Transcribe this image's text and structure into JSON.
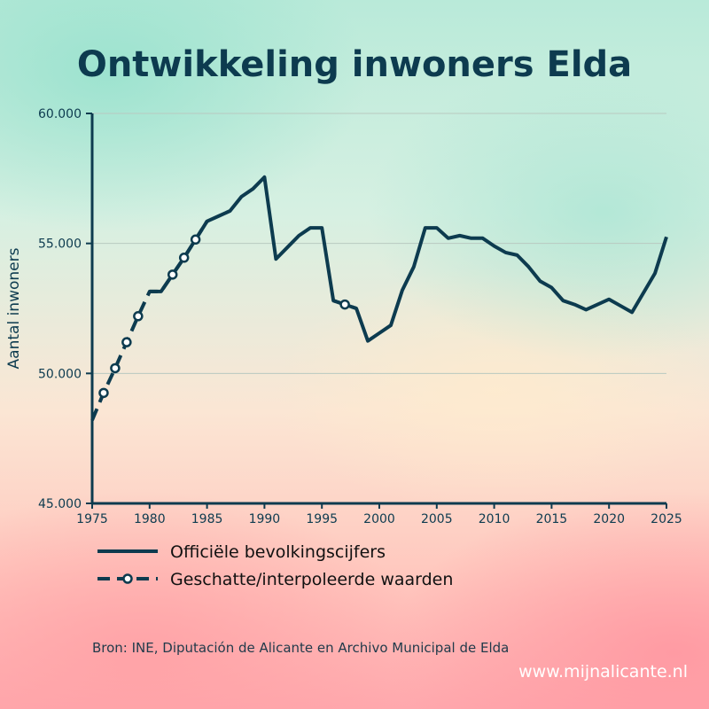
{
  "title": "Ontwikkeling inwoners Elda",
  "source": "Bron: INE, Diputación de Alicante en Archivo Municipal de Elda",
  "watermark": "www.mijnalicante.nl",
  "colors": {
    "line": "#0d3b4f",
    "grid": "#b9c9c0",
    "marker_fill": "#ffffff"
  },
  "chart_data": {
    "type": "line",
    "ylabel": "Aantal inwoners",
    "xlim": [
      1975,
      2025
    ],
    "ylim": [
      45000,
      60000
    ],
    "x_ticks": [
      1975,
      1980,
      1985,
      1990,
      1995,
      2000,
      2005,
      2010,
      2015,
      2020,
      2025
    ],
    "y_ticks": [
      {
        "value": 45000,
        "label": "45.000"
      },
      {
        "value": 50000,
        "label": "50.000"
      },
      {
        "value": 55000,
        "label": "55.000"
      },
      {
        "value": 60000,
        "label": "60.000"
      }
    ],
    "grid": "horizontal",
    "legend_position": "bottom-left",
    "series": [
      {
        "name": "Officiële bevolkingscijfers",
        "style": "solid",
        "x": [
          1980,
          1981,
          1982,
          1983,
          1984,
          1985,
          1986,
          1987,
          1988,
          1989,
          1990,
          1991,
          1992,
          1993,
          1994,
          1995,
          1996,
          1997,
          1998,
          1999,
          2000,
          2001,
          2002,
          2003,
          2004,
          2005,
          2006,
          2007,
          2008,
          2009,
          2010,
          2011,
          2012,
          2013,
          2014,
          2015,
          2016,
          2017,
          2018,
          2019,
          2020,
          2021,
          2022,
          2023,
          2024,
          2025
        ],
        "y": [
          53150,
          53150,
          53800,
          54450,
          55150,
          55850,
          56050,
          56250,
          56800,
          57100,
          57550,
          54400,
          54850,
          55300,
          55600,
          55600,
          52800,
          52650,
          52500,
          51250,
          51550,
          51850,
          53200,
          54100,
          55600,
          55600,
          55200,
          55300,
          55200,
          55200,
          54900,
          54650,
          54550,
          54100,
          53550,
          53300,
          52800,
          52650,
          52450,
          52650,
          52850,
          52600,
          52350,
          53100,
          53850,
          55250
        ]
      },
      {
        "name": "Geschatte/interpoleerde waarden",
        "style": "dashed",
        "x": [
          1975,
          1976,
          1977,
          1978,
          1979,
          1980,
          1981,
          1982,
          1983,
          1984,
          1985
        ],
        "y": [
          48200,
          49250,
          50200,
          51200,
          52200,
          53150,
          53150,
          53800,
          54450,
          55150,
          55850
        ],
        "markers_x": [
          1976,
          1977,
          1978,
          1979,
          1982,
          1983,
          1984
        ],
        "markers_y": [
          49250,
          50200,
          51200,
          52200,
          53800,
          54450,
          55150
        ]
      },
      {
        "name": "Geschatte/interpoleerde waarden",
        "style": "dashed",
        "x": [
          1996,
          1997,
          1998
        ],
        "y": [
          52800,
          52650,
          52500
        ],
        "markers_x": [
          1997
        ],
        "markers_y": [
          52650
        ]
      }
    ]
  }
}
